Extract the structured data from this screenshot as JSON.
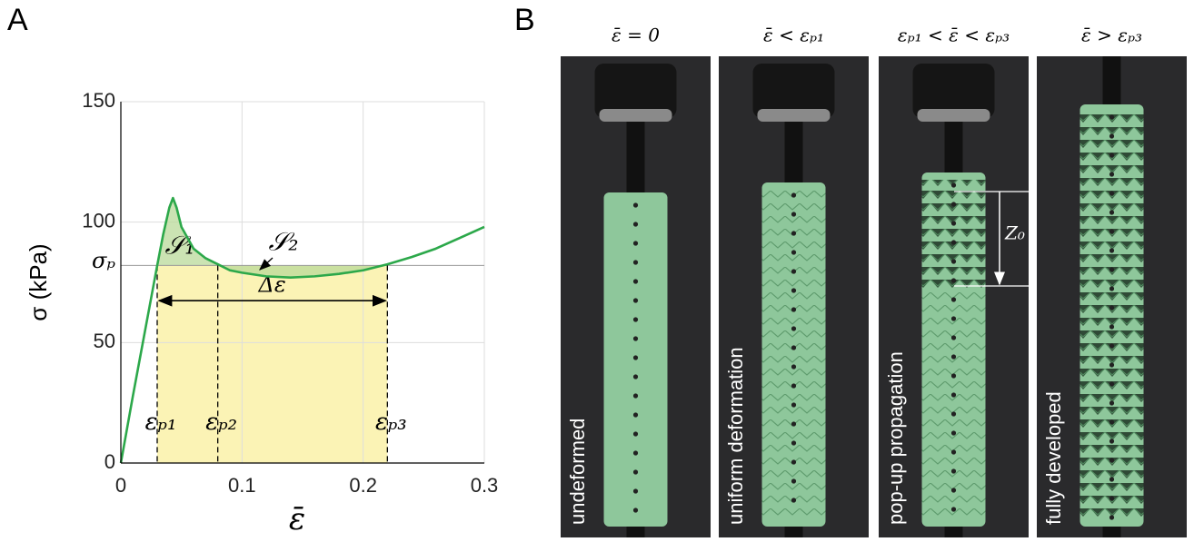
{
  "chart_data": {
    "type": "line",
    "panel": "A",
    "x": [
      0,
      0.01,
      0.02,
      0.03,
      0.035,
      0.04,
      0.043,
      0.046,
      0.05,
      0.06,
      0.07,
      0.08,
      0.09,
      0.1,
      0.12,
      0.14,
      0.16,
      0.18,
      0.2,
      0.22,
      0.24,
      0.26,
      0.28,
      0.3
    ],
    "series": [
      {
        "color": "#2ca84a",
        "values": [
          0,
          28,
          55,
          82,
          95,
          106,
          110,
          106,
          98,
          89,
          85,
          82.5,
          80,
          79,
          77.5,
          77,
          77.5,
          78.5,
          80,
          82.5,
          85.5,
          89,
          93.5,
          98
        ]
      }
    ],
    "xlabel": "ε̄",
    "ylabel": "σ (kPa)",
    "xlim": [
      0,
      0.3
    ],
    "xticks": [
      0,
      0.1,
      0.2,
      0.3
    ],
    "ylim": [
      0,
      150
    ],
    "yticks": [
      0,
      50,
      100,
      150
    ],
    "grid": true,
    "sigma_p": {
      "label": "σₚ",
      "value": 82
    },
    "markers": [
      {
        "label": "εₚ₁",
        "value": 0.03
      },
      {
        "label": "εₚ₂",
        "value": 0.08
      },
      {
        "label": "εₚ₃",
        "value": 0.22
      }
    ],
    "region_labels": [
      "𝒮₁",
      "𝒮₂"
    ],
    "delta_label": "Δε"
  },
  "panel_b": {
    "panel": "B",
    "photos": [
      {
        "title": "ε̄ = 0",
        "caption": "undeformed"
      },
      {
        "title": "ε̄ < εₚ₁",
        "caption": "uniform deformation"
      },
      {
        "title": "εₚ₁ < ε̄ < εₚ₃",
        "caption": "pop-up propagation"
      },
      {
        "title": "ε̄ > εₚ₃",
        "caption": "fully developed"
      }
    ],
    "z_label": "Z₀"
  }
}
